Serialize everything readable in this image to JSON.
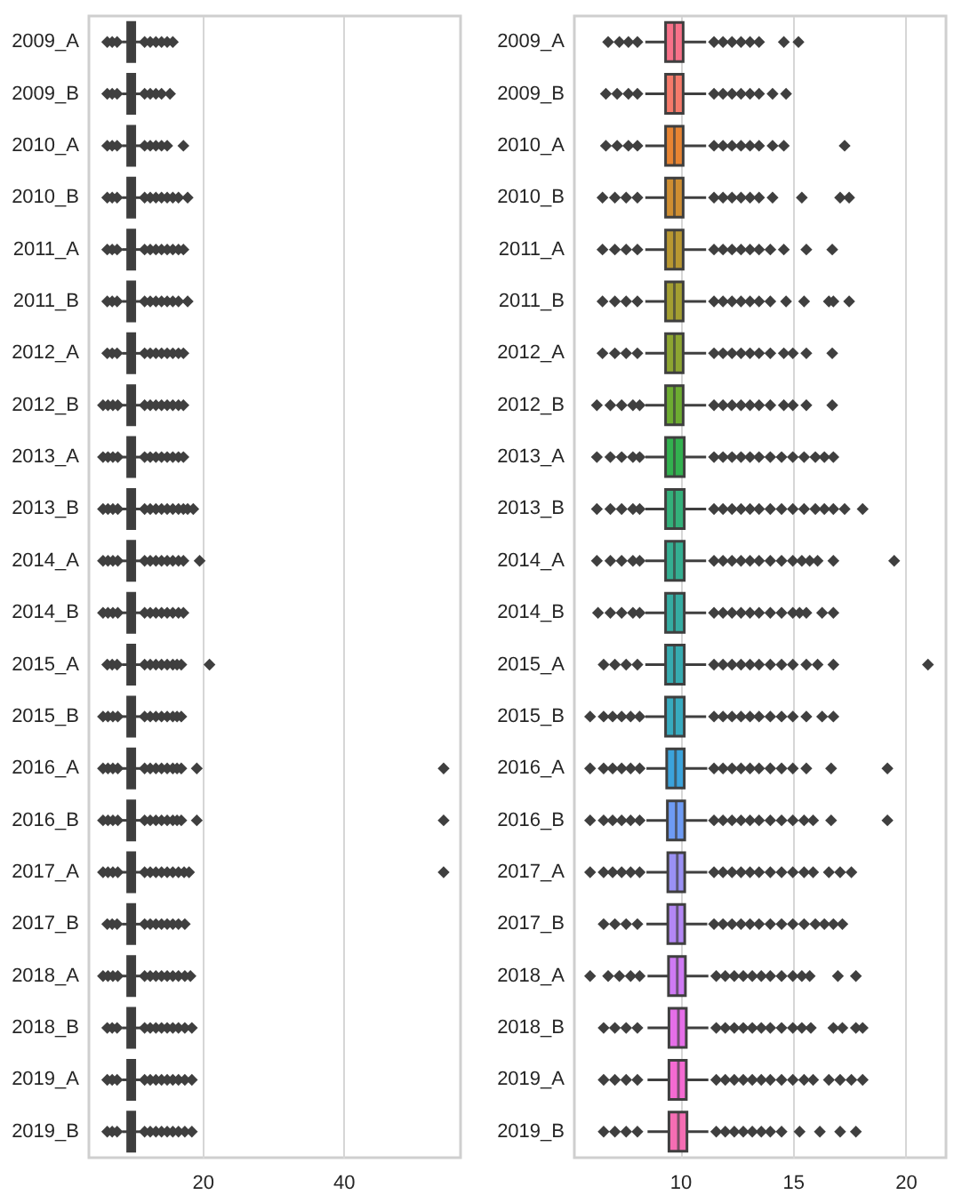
{
  "chart_data": [
    {
      "type": "box",
      "orientation": "horizontal",
      "color": "#3d3d3d",
      "grid": "x",
      "xlim": [
        3.9,
        56.6
      ],
      "xticks": [
        20,
        40
      ],
      "categories": [
        "2009_A",
        "2009_B",
        "2010_A",
        "2010_B",
        "2011_A",
        "2011_B",
        "2012_A",
        "2012_B",
        "2013_A",
        "2013_B",
        "2014_A",
        "2014_B",
        "2015_A",
        "2015_B",
        "2016_A",
        "2016_B",
        "2017_A",
        "2017_B",
        "2018_A",
        "2018_B",
        "2019_A",
        "2019_B"
      ],
      "boxes": [
        {
          "low": 8.6,
          "q1": 9.4,
          "median": 9.9,
          "q3": 10.4,
          "high": 11.3,
          "outliers": [
            6.5,
            7.2,
            7.9,
            11.8,
            12.6,
            13.4,
            14.2,
            15.0,
            15.8
          ]
        },
        {
          "low": 8.6,
          "q1": 9.4,
          "median": 9.9,
          "q3": 10.4,
          "high": 11.3,
          "outliers": [
            6.5,
            7.2,
            7.9,
            11.8,
            12.6,
            13.4,
            14.2,
            15.4
          ]
        },
        {
          "low": 8.6,
          "q1": 9.4,
          "median": 9.9,
          "q3": 10.4,
          "high": 11.3,
          "outliers": [
            6.5,
            7.2,
            7.9,
            11.8,
            12.6,
            13.4,
            14.2,
            15.0,
            17.3
          ]
        },
        {
          "low": 8.6,
          "q1": 9.4,
          "median": 9.9,
          "q3": 10.4,
          "high": 11.3,
          "outliers": [
            6.5,
            7.2,
            7.9,
            11.8,
            12.6,
            13.4,
            14.2,
            15.0,
            15.8,
            16.6,
            17.9
          ]
        },
        {
          "low": 8.6,
          "q1": 9.4,
          "median": 9.9,
          "q3": 10.4,
          "high": 11.3,
          "outliers": [
            6.5,
            7.2,
            7.9,
            11.8,
            12.6,
            13.4,
            14.2,
            15.0,
            15.8,
            16.6,
            17.3
          ]
        },
        {
          "low": 8.6,
          "q1": 9.4,
          "median": 9.9,
          "q3": 10.4,
          "high": 11.3,
          "outliers": [
            6.5,
            7.2,
            7.9,
            11.8,
            12.6,
            13.4,
            14.2,
            15.0,
            15.8,
            16.6,
            17.9
          ]
        },
        {
          "low": 8.6,
          "q1": 9.4,
          "median": 9.9,
          "q3": 10.4,
          "high": 11.3,
          "outliers": [
            6.5,
            7.2,
            7.9,
            11.8,
            12.6,
            13.4,
            14.2,
            15.0,
            15.8,
            16.6,
            17.3
          ]
        },
        {
          "low": 8.6,
          "q1": 9.4,
          "median": 9.9,
          "q3": 10.4,
          "high": 11.3,
          "outliers": [
            5.9,
            6.6,
            7.3,
            8.0,
            11.8,
            12.6,
            13.4,
            14.2,
            15.0,
            15.8,
            16.6,
            17.3
          ]
        },
        {
          "low": 8.6,
          "q1": 9.4,
          "median": 9.9,
          "q3": 10.4,
          "high": 11.3,
          "outliers": [
            5.9,
            6.6,
            7.3,
            8.0,
            11.8,
            12.6,
            13.4,
            14.2,
            15.0,
            15.8,
            16.6,
            17.3
          ]
        },
        {
          "low": 8.6,
          "q1": 9.4,
          "median": 9.9,
          "q3": 10.4,
          "high": 11.3,
          "outliers": [
            5.9,
            6.6,
            7.3,
            8.0,
            11.8,
            12.6,
            13.4,
            14.2,
            15.0,
            15.8,
            16.6,
            17.3,
            17.9,
            18.7
          ]
        },
        {
          "low": 8.6,
          "q1": 9.4,
          "median": 9.9,
          "q3": 10.4,
          "high": 11.3,
          "outliers": [
            5.9,
            6.6,
            7.3,
            8.0,
            11.8,
            12.6,
            13.4,
            14.2,
            15.0,
            15.8,
            16.6,
            17.3,
            19.6
          ]
        },
        {
          "low": 8.6,
          "q1": 9.4,
          "median": 9.9,
          "q3": 10.4,
          "high": 11.3,
          "outliers": [
            5.9,
            6.6,
            7.3,
            8.0,
            11.8,
            12.6,
            13.4,
            14.2,
            15.0,
            15.8,
            16.6,
            17.3
          ]
        },
        {
          "low": 8.6,
          "q1": 9.4,
          "median": 9.9,
          "q3": 10.4,
          "high": 11.3,
          "outliers": [
            6.5,
            7.2,
            7.9,
            11.8,
            12.6,
            13.4,
            14.2,
            15.0,
            15.8,
            16.4,
            17.0,
            21.0
          ]
        },
        {
          "low": 8.6,
          "q1": 9.4,
          "median": 9.9,
          "q3": 10.4,
          "high": 11.3,
          "outliers": [
            5.9,
            6.6,
            7.3,
            8.0,
            11.8,
            12.6,
            13.4,
            14.2,
            15.0,
            15.8,
            16.4,
            17.0
          ]
        },
        {
          "low": 8.6,
          "q1": 9.4,
          "median": 9.9,
          "q3": 10.4,
          "high": 11.3,
          "outliers": [
            5.9,
            6.6,
            7.3,
            8.0,
            11.8,
            12.6,
            13.4,
            14.2,
            15.0,
            15.8,
            16.4,
            17.0,
            19.2,
            54.2
          ]
        },
        {
          "low": 8.6,
          "q1": 9.4,
          "median": 9.9,
          "q3": 10.4,
          "high": 11.3,
          "outliers": [
            5.9,
            6.6,
            7.3,
            8.0,
            11.8,
            12.6,
            13.4,
            14.2,
            15.0,
            15.8,
            16.4,
            17.0,
            19.2,
            54.2
          ]
        },
        {
          "low": 8.6,
          "q1": 9.4,
          "median": 9.9,
          "q3": 10.4,
          "high": 11.3,
          "outliers": [
            5.9,
            6.6,
            7.3,
            8.0,
            11.8,
            12.6,
            13.4,
            14.2,
            15.0,
            15.8,
            16.6,
            17.4,
            18.1,
            54.2
          ]
        },
        {
          "low": 8.6,
          "q1": 9.4,
          "median": 9.9,
          "q3": 10.4,
          "high": 11.3,
          "outliers": [
            6.5,
            7.2,
            7.9,
            11.8,
            12.6,
            13.4,
            14.2,
            15.0,
            15.8,
            16.6,
            17.5
          ]
        },
        {
          "low": 8.6,
          "q1": 9.4,
          "median": 9.9,
          "q3": 10.4,
          "high": 11.3,
          "outliers": [
            5.9,
            6.6,
            7.3,
            8.0,
            11.8,
            12.6,
            13.4,
            14.2,
            15.0,
            15.8,
            16.6,
            17.5,
            18.3
          ]
        },
        {
          "low": 8.6,
          "q1": 9.4,
          "median": 9.9,
          "q3": 10.4,
          "high": 11.3,
          "outliers": [
            6.5,
            7.2,
            7.9,
            11.8,
            12.6,
            13.4,
            14.2,
            15.0,
            15.8,
            16.6,
            17.5,
            18.5
          ]
        },
        {
          "low": 8.6,
          "q1": 9.4,
          "median": 9.9,
          "q3": 10.4,
          "high": 11.3,
          "outliers": [
            6.5,
            7.2,
            7.9,
            11.8,
            12.6,
            13.4,
            14.2,
            15.0,
            15.8,
            16.6,
            17.5,
            18.5
          ]
        },
        {
          "low": 8.6,
          "q1": 9.4,
          "median": 9.9,
          "q3": 10.4,
          "high": 11.3,
          "outliers": [
            6.5,
            7.2,
            7.9,
            11.8,
            12.6,
            13.4,
            14.2,
            15.0,
            15.8,
            16.6,
            17.5,
            18.5
          ]
        }
      ]
    },
    {
      "type": "box",
      "orientation": "horizontal",
      "grid": "x",
      "xlim": [
        5.3,
        21.8
      ],
      "xticks": [
        10,
        15,
        20
      ],
      "categories": [
        "2009_A",
        "2009_B",
        "2010_A",
        "2010_B",
        "2011_A",
        "2011_B",
        "2012_A",
        "2012_B",
        "2013_A",
        "2013_B",
        "2014_A",
        "2014_B",
        "2015_A",
        "2015_B",
        "2016_A",
        "2016_B",
        "2017_A",
        "2017_B",
        "2018_A",
        "2018_B",
        "2019_A",
        "2019_B"
      ],
      "colors": [
        "#f77189",
        "#f67a6a",
        "#e78432",
        "#cf8e31",
        "#b89731",
        "#a39e31",
        "#8da531",
        "#6dac31",
        "#32b14f",
        "#33b07a",
        "#34ae91",
        "#35aca2",
        "#36abb0",
        "#37aabf",
        "#3ba3db",
        "#6e9bf4",
        "#9a91f4",
        "#b387f4",
        "#cf7af4",
        "#e56ee8",
        "#f46ad2",
        "#f56db3"
      ],
      "boxes": [
        {
          "low": 8.45,
          "q1": 9.35,
          "median": 9.74,
          "q3": 10.13,
          "high": 11.15,
          "outliers": [
            6.8,
            7.3,
            7.7,
            8.1,
            11.5,
            11.9,
            12.3,
            12.7,
            13.1,
            13.5,
            14.6,
            15.25
          ]
        },
        {
          "low": 8.45,
          "q1": 9.35,
          "median": 9.74,
          "q3": 10.13,
          "high": 11.15,
          "outliers": [
            6.7,
            7.2,
            7.7,
            8.1,
            11.5,
            11.9,
            12.3,
            12.7,
            13.1,
            13.5,
            14.1,
            14.7
          ]
        },
        {
          "low": 8.45,
          "q1": 9.35,
          "median": 9.74,
          "q3": 10.13,
          "high": 11.15,
          "outliers": [
            6.7,
            7.2,
            7.7,
            8.1,
            11.5,
            11.9,
            12.3,
            12.7,
            13.1,
            13.5,
            14.1,
            14.6,
            17.3
          ]
        },
        {
          "low": 8.45,
          "q1": 9.35,
          "median": 9.74,
          "q3": 10.13,
          "high": 11.15,
          "outliers": [
            6.55,
            7.1,
            7.6,
            8.1,
            11.5,
            11.9,
            12.3,
            12.7,
            13.1,
            13.5,
            14.1,
            15.4,
            17.1,
            17.5
          ]
        },
        {
          "low": 8.45,
          "q1": 9.35,
          "median": 9.74,
          "q3": 10.13,
          "high": 11.15,
          "outliers": [
            6.55,
            7.1,
            7.6,
            8.1,
            11.5,
            11.9,
            12.3,
            12.7,
            13.1,
            13.5,
            14.0,
            14.6,
            15.6,
            16.75
          ]
        },
        {
          "low": 8.45,
          "q1": 9.35,
          "median": 9.74,
          "q3": 10.13,
          "high": 11.15,
          "outliers": [
            6.55,
            7.1,
            7.6,
            8.1,
            11.5,
            11.9,
            12.3,
            12.7,
            13.1,
            13.5,
            14.0,
            14.7,
            15.5,
            16.6,
            16.8,
            17.5
          ]
        },
        {
          "low": 8.45,
          "q1": 9.35,
          "median": 9.74,
          "q3": 10.13,
          "high": 11.15,
          "outliers": [
            6.55,
            7.1,
            7.6,
            8.1,
            11.5,
            11.9,
            12.3,
            12.7,
            13.1,
            13.5,
            14.0,
            14.6,
            15.0,
            15.6,
            16.75
          ]
        },
        {
          "low": 8.45,
          "q1": 9.35,
          "median": 9.74,
          "q3": 10.13,
          "high": 11.15,
          "outliers": [
            6.3,
            6.9,
            7.4,
            7.9,
            8.2,
            11.5,
            11.9,
            12.3,
            12.7,
            13.1,
            13.5,
            14.0,
            14.6,
            15.0,
            15.6,
            16.75
          ]
        },
        {
          "low": 8.45,
          "q1": 9.35,
          "median": 9.74,
          "q3": 10.18,
          "high": 11.15,
          "outliers": [
            6.3,
            6.9,
            7.4,
            7.9,
            8.2,
            11.5,
            11.9,
            12.3,
            12.7,
            13.1,
            13.5,
            14.0,
            14.5,
            15.0,
            15.5,
            16.0,
            16.4,
            16.8
          ]
        },
        {
          "low": 8.45,
          "q1": 9.35,
          "median": 9.74,
          "q3": 10.18,
          "high": 11.15,
          "outliers": [
            6.3,
            6.9,
            7.4,
            7.9,
            8.2,
            11.5,
            11.9,
            12.3,
            12.7,
            13.1,
            13.5,
            14.0,
            14.5,
            15.0,
            15.5,
            16.0,
            16.4,
            16.8,
            17.3,
            18.1
          ]
        },
        {
          "low": 8.45,
          "q1": 9.35,
          "median": 9.74,
          "q3": 10.18,
          "high": 11.15,
          "outliers": [
            6.3,
            6.9,
            7.4,
            7.9,
            8.2,
            11.5,
            11.9,
            12.3,
            12.7,
            13.1,
            13.5,
            14.0,
            14.5,
            15.0,
            15.4,
            15.75,
            16.1,
            16.8,
            19.5
          ]
        },
        {
          "low": 8.45,
          "q1": 9.35,
          "median": 9.74,
          "q3": 10.18,
          "high": 11.15,
          "outliers": [
            6.35,
            6.9,
            7.4,
            7.9,
            8.2,
            11.5,
            11.9,
            12.3,
            12.7,
            13.1,
            13.5,
            14.0,
            14.5,
            15.0,
            15.3,
            15.6,
            16.3,
            16.8
          ]
        },
        {
          "low": 8.45,
          "q1": 9.35,
          "median": 9.74,
          "q3": 10.18,
          "high": 11.15,
          "outliers": [
            6.6,
            7.1,
            7.6,
            8.1,
            11.5,
            11.9,
            12.3,
            12.7,
            13.1,
            13.5,
            14.0,
            14.5,
            15.0,
            15.6,
            16.1,
            16.8,
            21.0
          ]
        },
        {
          "low": 8.45,
          "q1": 9.35,
          "median": 9.74,
          "q3": 10.18,
          "high": 11.15,
          "outliers": [
            6.0,
            6.6,
            7.0,
            7.4,
            7.8,
            8.2,
            11.5,
            11.9,
            12.3,
            12.7,
            13.1,
            13.5,
            14.0,
            14.5,
            15.0,
            15.6,
            16.3,
            16.8
          ]
        },
        {
          "low": 8.5,
          "q1": 9.4,
          "median": 9.79,
          "q3": 10.18,
          "high": 11.2,
          "outliers": [
            6.0,
            6.6,
            7.0,
            7.4,
            7.8,
            8.2,
            11.5,
            11.9,
            12.3,
            12.7,
            13.1,
            13.5,
            14.0,
            14.5,
            15.0,
            15.6,
            16.7,
            19.2
          ]
        },
        {
          "low": 8.5,
          "q1": 9.43,
          "median": 9.82,
          "q3": 10.2,
          "high": 11.2,
          "outliers": [
            6.0,
            6.6,
            7.0,
            7.4,
            7.8,
            8.2,
            11.5,
            11.9,
            12.3,
            12.7,
            13.1,
            13.5,
            14.0,
            14.5,
            15.0,
            15.5,
            15.9,
            16.7,
            19.2
          ]
        },
        {
          "low": 8.5,
          "q1": 9.45,
          "median": 9.87,
          "q3": 10.2,
          "high": 11.2,
          "outliers": [
            6.0,
            6.6,
            7.0,
            7.4,
            7.8,
            8.2,
            11.5,
            11.9,
            12.3,
            12.7,
            13.1,
            13.5,
            14.0,
            14.5,
            15.0,
            15.5,
            15.9,
            16.6,
            17.1,
            17.6
          ]
        },
        {
          "low": 8.5,
          "q1": 9.45,
          "median": 9.87,
          "q3": 10.2,
          "high": 11.2,
          "outliers": [
            6.6,
            7.1,
            7.6,
            8.1,
            11.5,
            11.9,
            12.3,
            12.7,
            13.1,
            13.5,
            14.0,
            14.5,
            15.0,
            15.5,
            16.0,
            16.4,
            16.8,
            17.2
          ]
        },
        {
          "low": 8.55,
          "q1": 9.48,
          "median": 9.87,
          "q3": 10.23,
          "high": 11.25,
          "outliers": [
            6.0,
            6.8,
            7.3,
            7.8,
            8.2,
            11.6,
            12.0,
            12.4,
            12.8,
            13.2,
            13.6,
            14.0,
            14.5,
            15.0,
            15.4,
            15.75,
            17.0,
            17.8
          ]
        },
        {
          "low": 8.55,
          "q1": 9.5,
          "median": 9.92,
          "q3": 10.27,
          "high": 11.25,
          "outliers": [
            6.6,
            7.1,
            7.6,
            8.1,
            11.6,
            12.0,
            12.4,
            12.8,
            13.2,
            13.6,
            14.0,
            14.5,
            15.0,
            15.4,
            15.8,
            16.8,
            17.2,
            17.8,
            18.1
          ]
        },
        {
          "low": 8.55,
          "q1": 9.5,
          "median": 9.92,
          "q3": 10.27,
          "high": 11.25,
          "outliers": [
            6.6,
            7.1,
            7.6,
            8.1,
            11.6,
            12.0,
            12.4,
            12.8,
            13.2,
            13.6,
            14.0,
            14.5,
            15.0,
            15.5,
            15.9,
            16.6,
            17.1,
            17.6,
            18.1
          ]
        },
        {
          "low": 8.55,
          "q1": 9.5,
          "median": 9.92,
          "q3": 10.3,
          "high": 11.25,
          "outliers": [
            6.6,
            7.1,
            7.6,
            8.1,
            11.6,
            12.0,
            12.4,
            12.8,
            13.2,
            13.6,
            14.0,
            14.5,
            15.3,
            16.2,
            17.1,
            17.8
          ]
        }
      ]
    }
  ]
}
